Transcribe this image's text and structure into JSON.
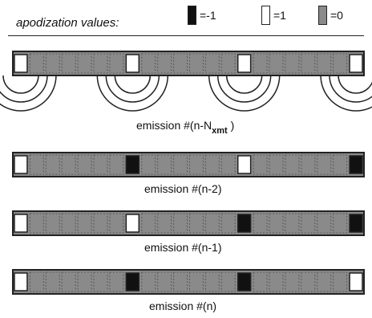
{
  "legend": {
    "title": "apodization values:",
    "items": [
      {
        "value": -1,
        "label": "=-1",
        "color": "#111111"
      },
      {
        "value": 1,
        "label": "=1",
        "color": "#ffffff"
      },
      {
        "value": 0,
        "label": "=0",
        "color": "#8a8a8a"
      }
    ]
  },
  "colors": {
    "stroke": "#222222",
    "zero_fill": "#8a8a8a",
    "neg_fill": "#111111",
    "pos_fill": "#ffffff"
  },
  "wave_icon": "concentric-arcs",
  "emissions": [
    {
      "caption_main": "emission #(n-N",
      "caption_sub": "xmt",
      "caption_tail": " )",
      "elements": [
        1,
        0,
        0,
        0,
        0,
        0,
        0,
        1,
        0,
        0,
        0,
        0,
        0,
        0,
        1,
        0,
        0,
        0,
        0,
        0,
        0,
        1
      ],
      "wavefronts": true
    },
    {
      "caption_main": "emission #(n-2)",
      "elements": [
        1,
        0,
        0,
        0,
        0,
        0,
        0,
        -1,
        0,
        0,
        0,
        0,
        0,
        0,
        1,
        0,
        0,
        0,
        0,
        0,
        0,
        -1
      ],
      "wavefronts": false
    },
    {
      "caption_main": "emission #(n-1)",
      "elements": [
        1,
        0,
        0,
        0,
        0,
        0,
        0,
        1,
        0,
        0,
        0,
        0,
        0,
        0,
        -1,
        0,
        0,
        0,
        0,
        0,
        0,
        -1
      ],
      "wavefronts": false
    },
    {
      "caption_main": "emission #(n)",
      "elements": [
        1,
        0,
        0,
        0,
        0,
        0,
        0,
        -1,
        0,
        0,
        0,
        0,
        0,
        0,
        -1,
        0,
        0,
        0,
        0,
        0,
        0,
        1
      ],
      "wavefronts": false
    }
  ]
}
